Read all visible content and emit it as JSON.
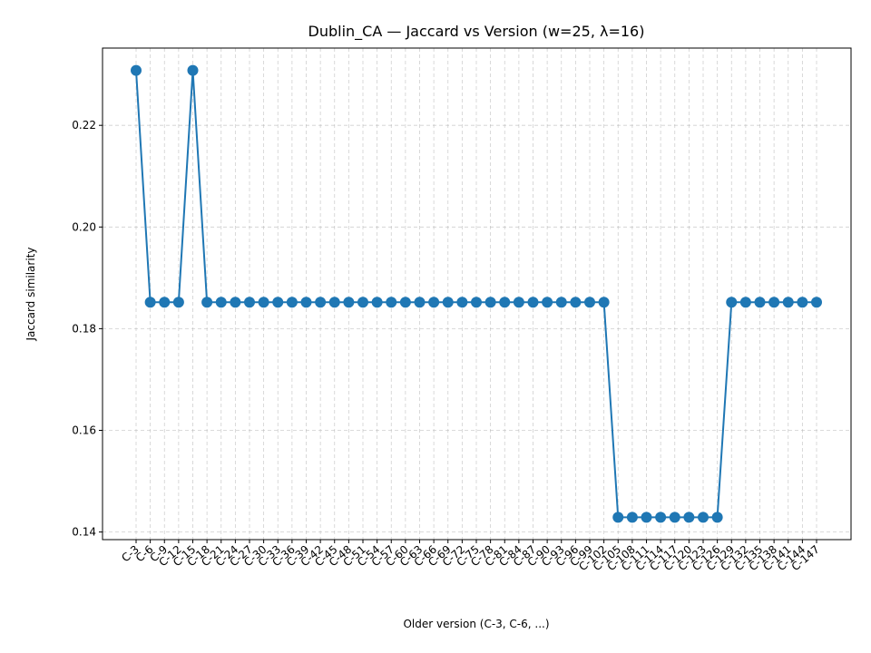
{
  "chart_data": {
    "type": "line",
    "title": "Dublin_CA — Jaccard vs Version (w=25, λ=16)",
    "xlabel": "Older version (C-3, C-6, ...)",
    "ylabel": "Jaccard similarity",
    "categories": [
      "C-3",
      "C-6",
      "C-9",
      "C-12",
      "C-15",
      "C-18",
      "C-21",
      "C-24",
      "C-27",
      "C-30",
      "C-33",
      "C-36",
      "C-39",
      "C-42",
      "C-45",
      "C-48",
      "C-51",
      "C-54",
      "C-57",
      "C-60",
      "C-63",
      "C-66",
      "C-69",
      "C-72",
      "C-75",
      "C-78",
      "C-81",
      "C-84",
      "C-87",
      "C-90",
      "C-93",
      "C-96",
      "C-99",
      "C-102",
      "C-105",
      "C-108",
      "C-111",
      "C-114",
      "C-117",
      "C-120",
      "C-123",
      "C-126",
      "C-129",
      "C-132",
      "C-135",
      "C-138",
      "C-141",
      "C-144",
      "C-147"
    ],
    "series": [
      {
        "color": "#1f77b4",
        "values": [
          0.2308,
          0.1852,
          0.1852,
          0.1852,
          0.2308,
          0.1852,
          0.1852,
          0.1852,
          0.1852,
          0.1852,
          0.1852,
          0.1852,
          0.1852,
          0.1852,
          0.1852,
          0.1852,
          0.1852,
          0.1852,
          0.1852,
          0.1852,
          0.1852,
          0.1852,
          0.1852,
          0.1852,
          0.1852,
          0.1852,
          0.1852,
          0.1852,
          0.1852,
          0.1852,
          0.1852,
          0.1852,
          0.1852,
          0.1852,
          0.1429,
          0.1429,
          0.1429,
          0.1429,
          0.1429,
          0.1429,
          0.1429,
          0.1429,
          0.1852,
          0.1852,
          0.1852,
          0.1852,
          0.1852,
          0.1852,
          0.1852
        ]
      }
    ],
    "yticks": [
      0.14,
      0.16,
      0.18,
      0.2,
      0.22
    ],
    "ytick_labels": [
      "0.14",
      "0.16",
      "0.18",
      "0.20",
      "0.22"
    ],
    "ylim": [
      0.1385,
      0.2352
    ],
    "grid": true
  }
}
